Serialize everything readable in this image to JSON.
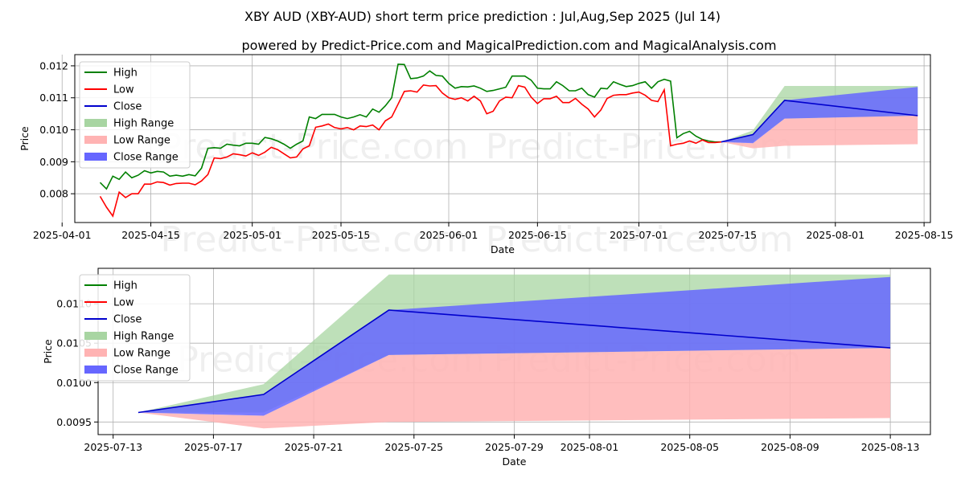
{
  "header": {
    "title": "XBY AUD (XBY-AUD) short term price prediction : Jul,Aug,Sep 2025 (Jul 14)",
    "subtitle": "powered by Predict-Price.com and MagicalPrediction.com and MagicalAnalysis.com"
  },
  "watermark": "Predict-Price.com",
  "colors": {
    "high": "#008000",
    "low": "#ff0000",
    "close": "#0000cd",
    "high_range": "#a8d5a2",
    "low_range": "#ffb3b3",
    "close_range": "#6666ff",
    "grid": "#b0b0b0"
  },
  "legend": [
    "High",
    "Low",
    "Close",
    "High Range",
    "Low Range",
    "Close Range"
  ],
  "chart_data": [
    {
      "type": "line",
      "name": "history-and-forecast",
      "xlabel": "Date",
      "ylabel": "Price",
      "grid": true,
      "legend_position": "top-left",
      "x_start": "2025-04-07",
      "xlim_days": [
        -4,
        131
      ],
      "ylim": [
        0.0071,
        0.01235
      ],
      "x_ticks": [
        {
          "label": "2025-04-01",
          "day": -6
        },
        {
          "label": "2025-04-15",
          "day": 8
        },
        {
          "label": "2025-05-01",
          "day": 24
        },
        {
          "label": "2025-05-15",
          "day": 38
        },
        {
          "label": "2025-06-01",
          "day": 55
        },
        {
          "label": "2025-06-15",
          "day": 69
        },
        {
          "label": "2025-07-01",
          "day": 85
        },
        {
          "label": "2025-07-15",
          "day": 99
        },
        {
          "label": "2025-08-01",
          "day": 116
        },
        {
          "label": "2025-08-15",
          "day": 130
        }
      ],
      "y_ticks": [
        {
          "label": "0.008",
          "value": 0.008
        },
        {
          "label": "0.009",
          "value": 0.009
        },
        {
          "label": "0.010",
          "value": 0.01
        },
        {
          "label": "0.011",
          "value": 0.011
        },
        {
          "label": "0.012",
          "value": 0.012
        }
      ],
      "history_days": [
        0,
        1,
        2,
        3,
        4,
        5,
        6,
        7,
        8,
        9,
        10,
        11,
        12,
        13,
        14,
        15,
        16,
        17,
        18,
        19,
        20,
        21,
        22,
        23,
        24,
        25,
        26,
        27,
        28,
        29,
        30,
        31,
        32,
        33,
        34,
        35,
        36,
        37,
        38,
        39,
        40,
        41,
        42,
        43,
        44,
        45,
        46,
        47,
        48,
        49,
        50,
        51,
        52,
        53,
        54,
        55,
        56,
        57,
        58,
        59,
        60,
        61,
        62,
        63,
        64,
        65,
        66,
        67,
        68,
        69,
        70,
        71,
        72,
        73,
        74,
        75,
        76,
        77,
        78,
        79,
        80,
        81,
        82,
        83,
        84,
        85,
        86,
        87,
        88,
        89,
        90,
        91,
        92,
        93,
        94,
        95,
        96,
        97,
        98
      ],
      "high": [
        0.00835,
        0.00815,
        0.00855,
        0.00845,
        0.00868,
        0.0085,
        0.00858,
        0.00872,
        0.00865,
        0.0087,
        0.00868,
        0.00855,
        0.00858,
        0.00855,
        0.0086,
        0.00856,
        0.0088,
        0.00942,
        0.00944,
        0.00942,
        0.00955,
        0.00952,
        0.0095,
        0.00958,
        0.00958,
        0.00955,
        0.00976,
        0.00972,
        0.00965,
        0.00955,
        0.00942,
        0.00955,
        0.00965,
        0.0104,
        0.01035,
        0.01048,
        0.01048,
        0.01048,
        0.0104,
        0.01035,
        0.0104,
        0.01047,
        0.0104,
        0.01065,
        0.01055,
        0.01075,
        0.011,
        0.01205,
        0.01204,
        0.0116,
        0.01162,
        0.01168,
        0.01184,
        0.0117,
        0.01168,
        0.01145,
        0.0113,
        0.01135,
        0.01134,
        0.01137,
        0.0113,
        0.0112,
        0.01123,
        0.01128,
        0.01133,
        0.01168,
        0.01168,
        0.01168,
        0.01155,
        0.0113,
        0.01128,
        0.01128,
        0.0115,
        0.01138,
        0.01122,
        0.01122,
        0.0113,
        0.0111,
        0.01102,
        0.0113,
        0.01128,
        0.0115,
        0.01142,
        0.01135,
        0.01138,
        0.01145,
        0.0115,
        0.0113,
        0.0115,
        0.01158,
        0.01152,
        0.00975,
        0.00988,
        0.00995,
        0.0098,
        0.0097,
        0.00965,
        0.00962,
        0.00962
      ],
      "low": [
        0.00792,
        0.00758,
        0.0073,
        0.00805,
        0.00788,
        0.008,
        0.008,
        0.0083,
        0.0083,
        0.00837,
        0.00835,
        0.00827,
        0.00832,
        0.00833,
        0.00833,
        0.00828,
        0.0084,
        0.0086,
        0.00912,
        0.0091,
        0.00915,
        0.00925,
        0.00922,
        0.00918,
        0.00928,
        0.0092,
        0.0093,
        0.00945,
        0.00938,
        0.00925,
        0.00912,
        0.00915,
        0.0094,
        0.0095,
        0.01008,
        0.01012,
        0.01018,
        0.01007,
        0.01003,
        0.01007,
        0.01,
        0.01012,
        0.0101,
        0.01015,
        0.01,
        0.01028,
        0.0104,
        0.0108,
        0.0112,
        0.01122,
        0.01118,
        0.0114,
        0.01137,
        0.01138,
        0.01115,
        0.011,
        0.01095,
        0.011,
        0.0109,
        0.01105,
        0.0109,
        0.0105,
        0.01058,
        0.0109,
        0.01102,
        0.011,
        0.01138,
        0.01133,
        0.01102,
        0.01082,
        0.01097,
        0.01097,
        0.01105,
        0.01085,
        0.01085,
        0.01098,
        0.0108,
        0.01065,
        0.0104,
        0.01062,
        0.01098,
        0.01108,
        0.0111,
        0.0111,
        0.01115,
        0.01118,
        0.01108,
        0.01092,
        0.01088,
        0.01125,
        0.0095,
        0.00955,
        0.00958,
        0.00965,
        0.00958,
        0.00968,
        0.0096,
        0.0096,
        0.00962
      ],
      "forecast_days": [
        98,
        103,
        108,
        129
      ],
      "forecast_close": [
        0.00962,
        0.00985,
        0.01092,
        0.01044
      ],
      "high_range": {
        "upper": [
          0.00962,
          0.00998,
          0.01137,
          0.01137
        ],
        "lower": [
          0.00962,
          0.00962,
          0.01035,
          0.01044
        ]
      },
      "low_range": {
        "upper": [
          0.00962,
          0.00958,
          0.01035,
          0.01044
        ],
        "lower": [
          0.00962,
          0.00942,
          0.0095,
          0.00955
        ]
      },
      "close_range": {
        "upper": [
          0.00962,
          0.00985,
          0.01092,
          0.01134
        ],
        "lower": [
          0.00962,
          0.00958,
          0.01035,
          0.01044
        ]
      }
    },
    {
      "type": "area",
      "name": "forecast-detail",
      "xlabel": "Date",
      "ylabel": "Price",
      "grid": true,
      "legend_position": "top-left",
      "xlim_days": [
        -1.6,
        31.6
      ],
      "ylim": [
        0.00934,
        0.01145
      ],
      "x_ticks": [
        {
          "label": "2025-07-13",
          "day": -1
        },
        {
          "label": "2025-07-17",
          "day": 3
        },
        {
          "label": "2025-07-21",
          "day": 7
        },
        {
          "label": "2025-07-25",
          "day": 11
        },
        {
          "label": "2025-07-29",
          "day": 15
        },
        {
          "label": "2025-08-01",
          "day": 18
        },
        {
          "label": "2025-08-05",
          "day": 22
        },
        {
          "label": "2025-08-09",
          "day": 26
        },
        {
          "label": "2025-08-13",
          "day": 30
        }
      ],
      "y_ticks": [
        {
          "label": "0.0095",
          "value": 0.0095
        },
        {
          "label": "0.0100",
          "value": 0.01
        },
        {
          "label": "0.0105",
          "value": 0.0105
        },
        {
          "label": "0.0110",
          "value": 0.011
        }
      ],
      "x": [
        0,
        5,
        10,
        30
      ],
      "close": [
        0.00962,
        0.00985,
        0.01092,
        0.01044
      ],
      "high_range": {
        "upper": [
          0.00962,
          0.00998,
          0.01137,
          0.01137
        ],
        "lower": [
          0.00962,
          0.00962,
          0.01035,
          0.01044
        ]
      },
      "low_range": {
        "upper": [
          0.00962,
          0.00958,
          0.01035,
          0.01044
        ],
        "lower": [
          0.00962,
          0.00942,
          0.0095,
          0.00955
        ]
      },
      "close_range": {
        "upper": [
          0.00962,
          0.00985,
          0.01092,
          0.01134
        ],
        "lower": [
          0.00962,
          0.00958,
          0.01035,
          0.01044
        ]
      }
    }
  ]
}
